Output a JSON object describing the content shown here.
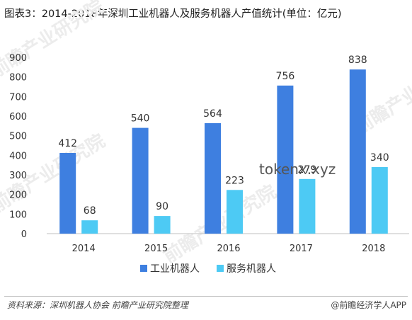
{
  "title": "图表3：2014-2018年深圳工业机器人及服务机器人产值统计(单位：亿元)",
  "footer": {
    "source": "资料来源：深圳机器人协会 前瞻产业研究院整理",
    "brand": "@前瞻经济学人APP"
  },
  "watermarks": [
    "前瞻产业研究院",
    "前瞻产业研究院",
    "前瞻产业研究院",
    "前瞻产业研究院"
  ],
  "overlay_text": "tokenx.xyz",
  "chart_data": {
    "type": "bar",
    "categories": [
      "2014",
      "2015",
      "2016",
      "2017",
      "2018"
    ],
    "series": [
      {
        "name": "工业机器人",
        "values": [
          412,
          540,
          564,
          756,
          838
        ],
        "color": "#3e7fe0"
      },
      {
        "name": "服务机器人",
        "values": [
          68,
          90,
          223,
          279,
          340
        ],
        "color": "#4dcaf4"
      }
    ],
    "ylim": [
      0,
      900
    ],
    "yticks": [
      0,
      100,
      200,
      300,
      400,
      500,
      600,
      700,
      800,
      900
    ],
    "grid": false,
    "legend": "bottom-center",
    "data_labels": true
  }
}
